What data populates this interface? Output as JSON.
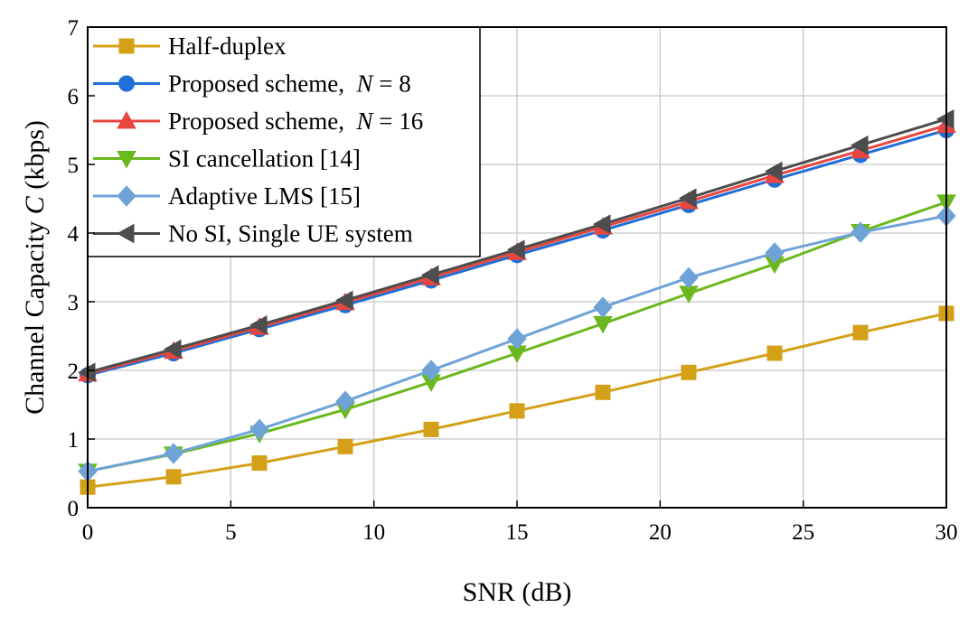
{
  "chart_data": {
    "type": "line",
    "xlabel": "SNR (dB)",
    "ylabel_parts": [
      "Channel Capacity ",
      "C",
      " (kbps)"
    ],
    "xlim": [
      0,
      30
    ],
    "ylim": [
      0,
      7
    ],
    "xticks": [
      0,
      5,
      10,
      15,
      20,
      25,
      30
    ],
    "yticks": [
      0,
      1,
      2,
      3,
      4,
      5,
      6,
      7
    ],
    "grid": true,
    "legend_position": "top-left",
    "x": [
      0,
      3,
      6,
      9,
      12,
      15,
      18,
      21,
      24,
      27,
      30
    ],
    "series": [
      {
        "key": "half-duplex",
        "name_parts": [
          "Half-duplex"
        ],
        "color": "#D4A017",
        "marker": "square",
        "values": [
          0.3,
          0.45,
          0.65,
          0.89,
          1.14,
          1.41,
          1.68,
          1.97,
          2.25,
          2.55,
          2.83
        ]
      },
      {
        "key": "proposed-n8",
        "name_parts": [
          "Proposed scheme,  ",
          "N",
          " = 8"
        ],
        "color": "#1F6FD6",
        "marker": "circle",
        "values": [
          1.93,
          2.25,
          2.6,
          2.95,
          3.31,
          3.68,
          4.04,
          4.41,
          4.78,
          5.14,
          5.5
        ]
      },
      {
        "key": "proposed-n16",
        "name_parts": [
          "Proposed scheme,  ",
          "N",
          " = 16"
        ],
        "color": "#E8473F",
        "marker": "triangle-up",
        "values": [
          1.95,
          2.28,
          2.63,
          2.99,
          3.35,
          3.72,
          4.09,
          4.46,
          4.84,
          5.2,
          5.57
        ]
      },
      {
        "key": "si-cancellation",
        "name_parts": [
          "SI cancellation [14]"
        ],
        "color": "#6BB81E",
        "marker": "triangle-down",
        "values": [
          0.53,
          0.78,
          1.08,
          1.43,
          1.83,
          2.25,
          2.68,
          3.12,
          3.55,
          4.02,
          4.45
        ]
      },
      {
        "key": "adaptive-lms",
        "name_parts": [
          "Adaptive LMS [15]"
        ],
        "color": "#6FA3D8",
        "marker": "diamond",
        "values": [
          0.53,
          0.79,
          1.14,
          1.55,
          2.0,
          2.46,
          2.92,
          3.35,
          3.71,
          4.01,
          4.25
        ]
      },
      {
        "key": "no-si",
        "name_parts": [
          "No SI, Single UE system"
        ],
        "color": "#4D4D4D",
        "marker": "triangle-left",
        "values": [
          1.97,
          2.31,
          2.66,
          3.02,
          3.39,
          3.76,
          4.13,
          4.51,
          4.9,
          5.28,
          5.66
        ]
      }
    ]
  }
}
